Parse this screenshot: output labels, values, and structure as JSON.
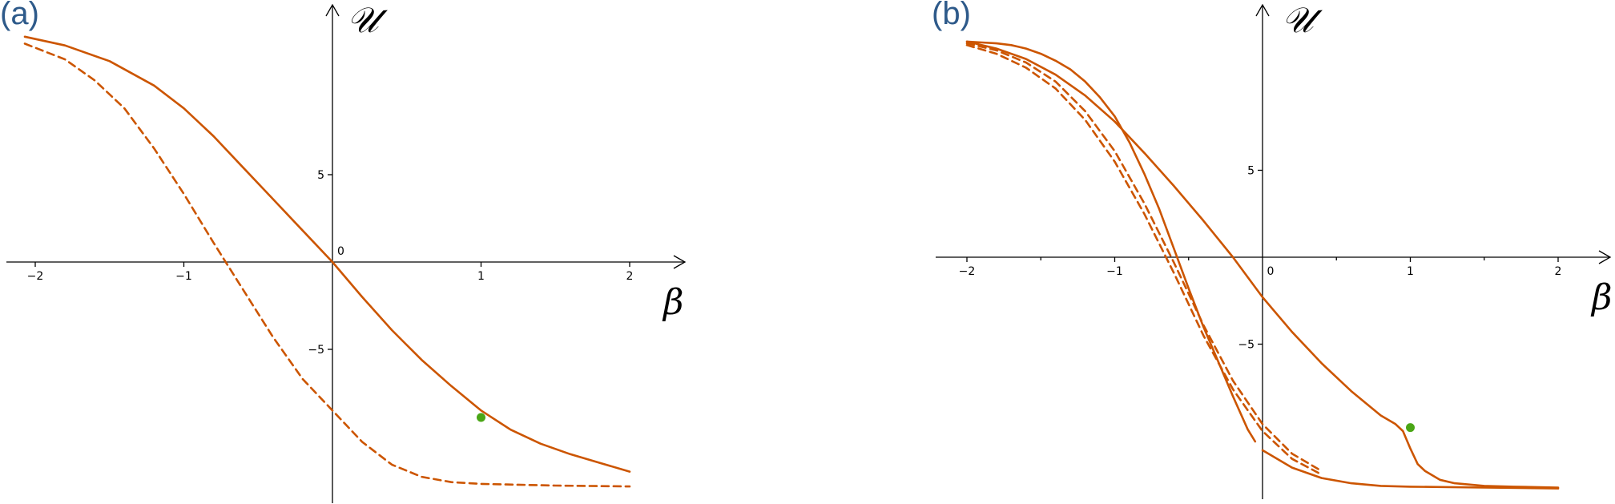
{
  "colors": {
    "curve": "#cc5500",
    "point": "#4aa616",
    "panel_label": "#2e5a8a"
  },
  "chart_data": [
    {
      "type": "line",
      "panel": "(a)",
      "xlabel": "β",
      "ylabel": "𝒰",
      "xlim": [
        -2.2,
        2.35
      ],
      "ylim": [
        -13.9,
        14.8
      ],
      "x_ticks": [
        -2,
        -1,
        0,
        1,
        2
      ],
      "x_tick_labels": [
        "−2",
        "−1",
        "",
        "1",
        "2"
      ],
      "y_ticks": [
        5,
        -5
      ],
      "y_tick_labels": [
        "5",
        "−5"
      ],
      "origin_label": "0",
      "series": [
        {
          "style": "solid",
          "x": [
            -2.07,
            -1.8,
            -1.5,
            -1.2,
            -1.0,
            -0.8,
            -0.6,
            -0.4,
            -0.2,
            0.0,
            0.2,
            0.4,
            0.6,
            0.8,
            1.0,
            1.2,
            1.4,
            1.6,
            1.8,
            2.0
          ],
          "y": [
            12.9,
            12.4,
            11.5,
            10.1,
            8.8,
            7.2,
            5.4,
            3.6,
            1.8,
            0.0,
            -2.0,
            -3.9,
            -5.6,
            -7.1,
            -8.5,
            -9.6,
            -10.4,
            -11.0,
            -11.5,
            -12.0
          ]
        },
        {
          "style": "dashed",
          "x": [
            -2.07,
            -1.8,
            -1.6,
            -1.4,
            -1.2,
            -1.0,
            -0.8,
            -0.6,
            -0.4,
            -0.2,
            0.0,
            0.2,
            0.4,
            0.6,
            0.8,
            1.0,
            1.5,
            2.0
          ],
          "y": [
            12.5,
            11.6,
            10.4,
            8.8,
            6.5,
            3.9,
            1.1,
            -1.6,
            -4.3,
            -6.7,
            -8.5,
            -10.3,
            -11.6,
            -12.3,
            -12.6,
            -12.7,
            -12.8,
            -12.85
          ]
        }
      ],
      "points": [
        {
          "x": 1.0,
          "y": -8.9
        }
      ]
    },
    {
      "type": "line",
      "panel": "(b)",
      "xlabel": "β",
      "ylabel": "𝒰",
      "xlim": [
        -2.35,
        2.35
      ],
      "ylim": [
        -13.8,
        14.6
      ],
      "x_ticks": [
        -2,
        -1,
        0,
        1,
        2
      ],
      "x_tick_labels": [
        "−2",
        "−1",
        "0",
        "1",
        "2"
      ],
      "y_ticks": [
        5,
        -5
      ],
      "y_tick_labels": [
        "5",
        "−5"
      ],
      "minor_x_ticks": [
        -1.5,
        -0.5,
        0.5,
        1.5
      ],
      "series": [
        {
          "style": "solid",
          "x": [
            -2.0,
            -1.8,
            -1.6,
            -1.4,
            -1.2,
            -1.0,
            -0.8,
            -0.6,
            -0.4,
            -0.2,
            0.0,
            0.2,
            0.4,
            0.6,
            0.8,
            0.9,
            0.95,
            1.0,
            1.05,
            1.1,
            1.2,
            1.3,
            1.5,
            1.7,
            2.0
          ],
          "y": [
            12.4,
            12.0,
            11.4,
            10.5,
            9.3,
            7.8,
            6.0,
            4.1,
            2.1,
            0.0,
            -2.3,
            -4.3,
            -6.1,
            -7.7,
            -9.1,
            -9.6,
            -10.0,
            -11.0,
            -11.9,
            -12.3,
            -12.8,
            -13.0,
            -13.15,
            -13.2,
            -13.25
          ]
        },
        {
          "style": "solid",
          "x": [
            -0.05,
            -0.1,
            -0.2,
            -0.3,
            -0.4,
            -0.5,
            -0.6,
            -0.7,
            -0.8,
            -0.9,
            -1.0,
            -1.1,
            -1.2,
            -1.3,
            -1.4,
            -1.5,
            -1.6,
            -1.7,
            -1.8,
            -1.9,
            -2.0
          ],
          "y": [
            -10.6,
            -9.9,
            -8.0,
            -6.0,
            -4.0,
            -1.8,
            0.5,
            2.8,
            4.8,
            6.6,
            8.1,
            9.2,
            10.1,
            10.8,
            11.3,
            11.7,
            12.0,
            12.2,
            12.3,
            12.35,
            12.4
          ],
          "tail_x": [
            0.0,
            0.2,
            0.4,
            0.6,
            0.8,
            1.0,
            1.5,
            2.0
          ],
          "tail_y": [
            -11.1,
            -12.1,
            -12.7,
            -13.0,
            -13.15,
            -13.2,
            -13.25,
            -13.3
          ]
        },
        {
          "style": "dashed",
          "x": [
            -2.0,
            -1.8,
            -1.6,
            -1.4,
            -1.2,
            -1.0,
            -0.8,
            -0.6,
            -0.4,
            -0.2,
            0.0,
            0.2,
            0.4
          ],
          "y": [
            12.3,
            11.9,
            11.2,
            10.1,
            8.4,
            6.1,
            3.1,
            -0.3,
            -3.9,
            -7.1,
            -9.6,
            -11.3,
            -12.3
          ]
        },
        {
          "style": "dashed",
          "x": [
            -2.0,
            -1.8,
            -1.6,
            -1.4,
            -1.2,
            -1.0,
            -0.8,
            -0.6,
            -0.4,
            -0.2,
            0.0,
            0.2,
            0.4
          ],
          "y": [
            12.2,
            11.7,
            10.9,
            9.7,
            7.9,
            5.5,
            2.5,
            -0.9,
            -4.5,
            -7.6,
            -10.0,
            -11.6,
            -12.5
          ]
        }
      ],
      "points": [
        {
          "x": 1.0,
          "y": -9.8
        }
      ]
    }
  ]
}
